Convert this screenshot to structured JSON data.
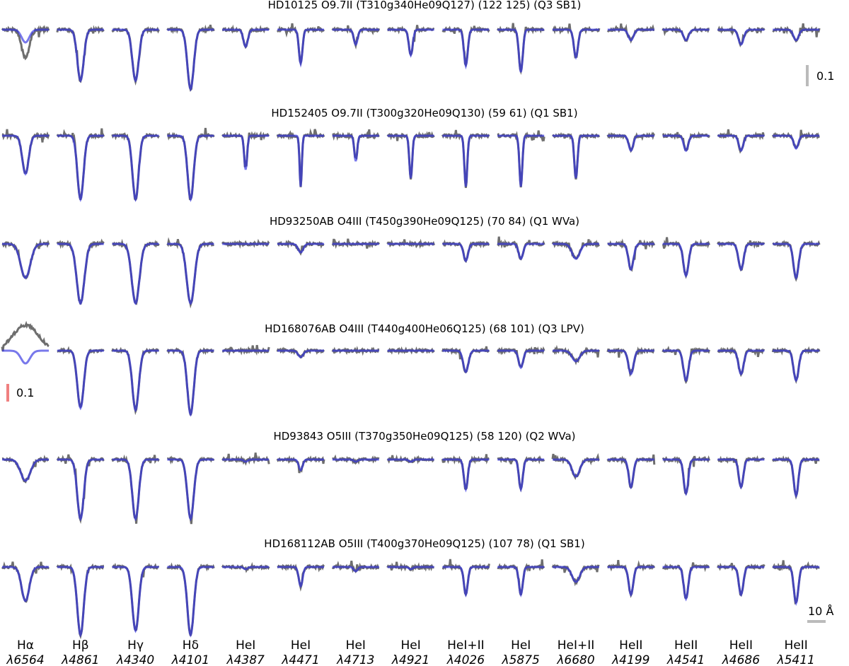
{
  "chart_data": {
    "type": "line",
    "description_of_panels": "grid of line profiles; each cell shows observed spectrum and model fit",
    "columns": [
      {
        "name": "Hα",
        "wavelength": "λ6564"
      },
      {
        "name": "Hβ",
        "wavelength": "λ4861"
      },
      {
        "name": "Hγ",
        "wavelength": "λ4340"
      },
      {
        "name": "Hδ",
        "wavelength": "λ4101"
      },
      {
        "name": "HeI",
        "wavelength": "λ4387"
      },
      {
        "name": "HeI",
        "wavelength": "λ4471"
      },
      {
        "name": "HeI",
        "wavelength": "λ4713"
      },
      {
        "name": "HeI",
        "wavelength": "λ4921"
      },
      {
        "name": "HeI+II",
        "wavelength": "λ4026"
      },
      {
        "name": "HeI",
        "wavelength": "λ5875"
      },
      {
        "name": "HeI+II",
        "wavelength": "λ6680"
      },
      {
        "name": "HeII",
        "wavelength": "λ4199"
      },
      {
        "name": "HeII",
        "wavelength": "λ4541"
      },
      {
        "name": "HeII",
        "wavelength": "λ4686"
      },
      {
        "name": "HeII",
        "wavelength": "λ5411"
      }
    ],
    "stars": [
      {
        "title": "HD10125 O9.7II (T310g340He09Q127) (122 125) (Q3 SB1)",
        "depths": [
          0.06,
          0.24,
          0.24,
          0.28,
          0.08,
          0.16,
          0.07,
          0.12,
          0.17,
          0.2,
          0.13,
          0.05,
          0.05,
          0.07,
          0.05
        ],
        "widths": [
          1.2,
          1.0,
          1.0,
          1.0,
          0.7,
          0.55,
          0.6,
          0.6,
          0.6,
          0.6,
          0.65,
          0.8,
          0.8,
          0.8,
          0.8
        ]
      },
      {
        "title": "HD152405 O9.7II (T300g320He09Q130) (59 61) (Q1 SB1)",
        "depths": [
          0.18,
          0.3,
          0.3,
          0.3,
          0.16,
          0.24,
          0.12,
          0.2,
          0.24,
          0.24,
          0.2,
          0.07,
          0.07,
          0.07,
          0.06
        ],
        "widths": [
          1.0,
          0.95,
          0.95,
          0.95,
          0.45,
          0.35,
          0.45,
          0.45,
          0.45,
          0.45,
          0.5,
          0.7,
          0.7,
          0.7,
          0.7
        ]
      },
      {
        "title": "HD93250AB O4III (T450g390He09Q125) (70 84) (Q1 WVa)",
        "depths": [
          0.16,
          0.28,
          0.28,
          0.28,
          0.0,
          0.04,
          0.0,
          0.0,
          0.08,
          0.07,
          0.07,
          0.12,
          0.15,
          0.12,
          0.16
        ],
        "widths": [
          1.5,
          1.2,
          1.2,
          1.2,
          0.6,
          0.8,
          0.6,
          0.6,
          0.7,
          0.7,
          1.2,
          0.8,
          0.8,
          0.8,
          0.8
        ]
      },
      {
        "title": "HD168076AB O4III (T440g400He06Q125) (68 101) (Q3 LPV)",
        "depths": [
          0.06,
          0.27,
          0.28,
          0.3,
          0.0,
          0.03,
          0.0,
          0.0,
          0.1,
          0.08,
          0.05,
          0.11,
          0.14,
          0.11,
          0.14
        ],
        "widths": [
          1.4,
          1.0,
          1.0,
          1.0,
          0.6,
          0.8,
          0.6,
          0.6,
          0.8,
          0.7,
          1.2,
          0.8,
          0.8,
          0.8,
          0.8
        ]
      },
      {
        "title": "HD93843 O5III (T370g350He09Q125) (58 120) (Q2 WVa)",
        "depths": [
          0.1,
          0.28,
          0.28,
          0.28,
          0.01,
          0.05,
          0.01,
          0.01,
          0.14,
          0.14,
          0.08,
          0.13,
          0.16,
          0.13,
          0.17
        ],
        "widths": [
          1.5,
          1.0,
          1.0,
          1.0,
          0.6,
          0.6,
          0.6,
          0.6,
          0.6,
          0.6,
          1.2,
          0.7,
          0.7,
          0.7,
          0.7
        ]
      },
      {
        "title": "HD168112AB O5III (T400g370He09Q125) (107 78) (Q1 SB1)",
        "depths": [
          0.16,
          0.32,
          0.3,
          0.32,
          0.01,
          0.09,
          0.02,
          0.01,
          0.13,
          0.13,
          0.07,
          0.13,
          0.15,
          0.13,
          0.17
        ],
        "widths": [
          1.2,
          1.0,
          1.0,
          1.0,
          0.6,
          0.6,
          0.6,
          0.6,
          0.6,
          0.6,
          1.2,
          0.7,
          0.7,
          0.7,
          0.7
        ]
      }
    ],
    "series": [
      {
        "role": "observed",
        "color": "#555555"
      },
      {
        "role": "model",
        "color": "#3030e0"
      }
    ],
    "scale_bars": [
      {
        "label": "0.1",
        "color": "#bbbbbb",
        "axis": "flux"
      },
      {
        "label": "0.1",
        "color": "#f08080",
        "axis": "flux"
      },
      {
        "label": "10 Å",
        "color": "#bbbbbb",
        "axis": "wavelength"
      }
    ]
  }
}
